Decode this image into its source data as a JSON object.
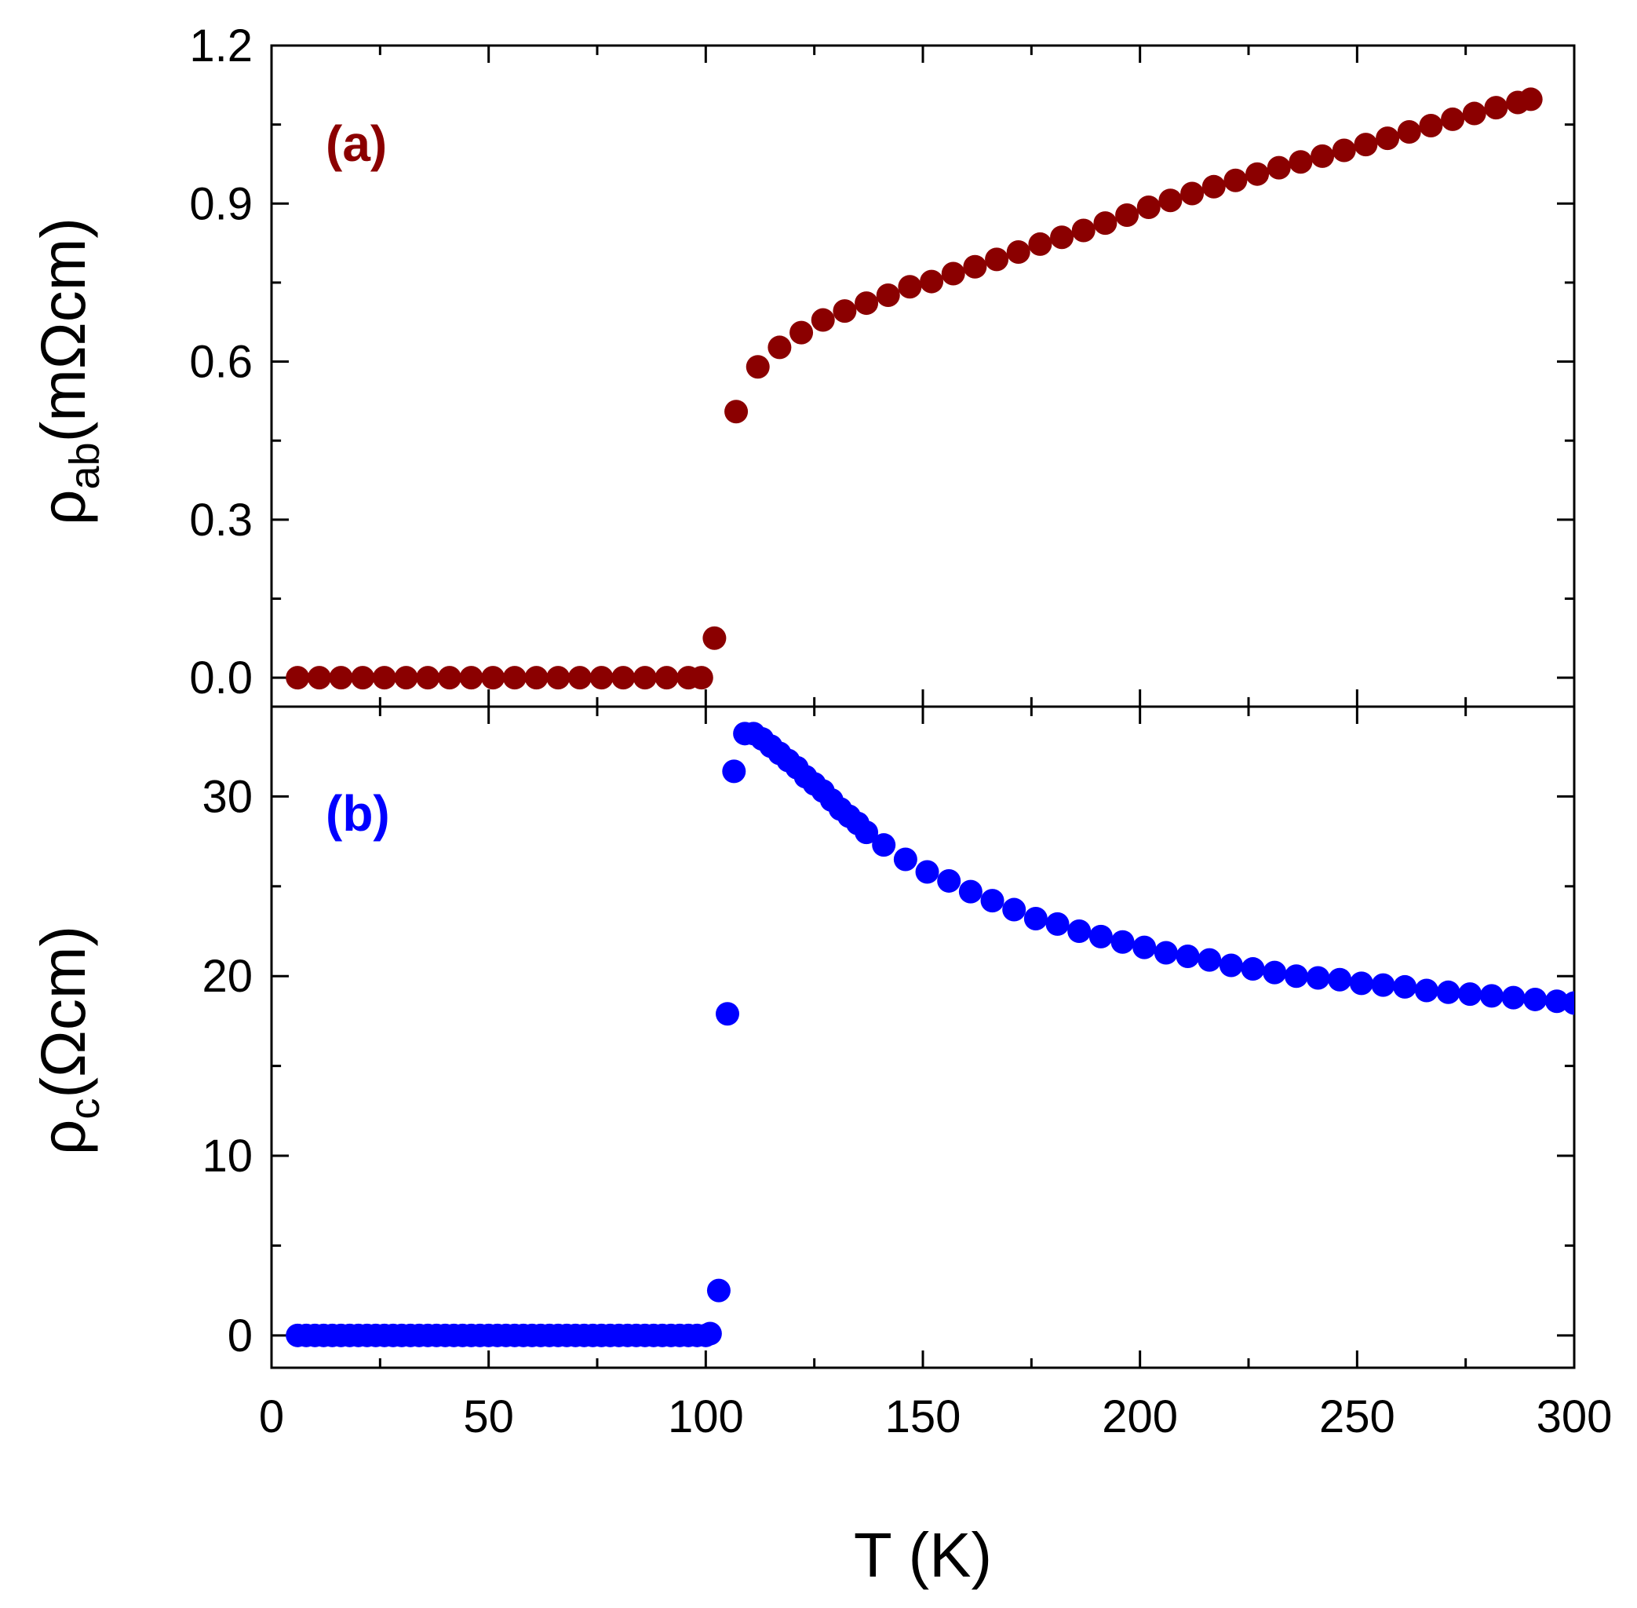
{
  "colors": {
    "series_a": "#8b0000",
    "series_b": "#0000ff",
    "axes": "#000000",
    "background": "#ffffff"
  },
  "chart_data": [
    {
      "panel": "a",
      "type": "scatter",
      "panel_tag": "(a)",
      "xlabel": "T (K)",
      "ylabel": {
        "symbol": "ρ",
        "subscript": "ab",
        "unit": "(mΩcm)"
      },
      "xlim": [
        0,
        300
      ],
      "ylim": [
        -0.055,
        1.2
      ],
      "x_ticks": [
        0,
        50,
        100,
        150,
        200,
        250,
        300
      ],
      "y_ticks": [
        0.0,
        0.3,
        0.6,
        0.9,
        1.2
      ],
      "y_tick_labels": [
        "0.0",
        "0.3",
        "0.6",
        "0.9",
        "1.2"
      ],
      "grid": false,
      "series": [
        {
          "color": "#8b0000",
          "points": [
            [
              6,
              0.0
            ],
            [
              11,
              0.0
            ],
            [
              16,
              0.0
            ],
            [
              21,
              0.0
            ],
            [
              26,
              0.0
            ],
            [
              31,
              0.0
            ],
            [
              36,
              0.0
            ],
            [
              41,
              0.0
            ],
            [
              46,
              0.0
            ],
            [
              51,
              0.0
            ],
            [
              56,
              0.0
            ],
            [
              61,
              0.0
            ],
            [
              66,
              0.0
            ],
            [
              71,
              0.0
            ],
            [
              76,
              0.0
            ],
            [
              81,
              0.0
            ],
            [
              86,
              0.0
            ],
            [
              91,
              0.0
            ],
            [
              96,
              0.0
            ],
            [
              99,
              0.0
            ],
            [
              102,
              0.075
            ],
            [
              107,
              0.505
            ],
            [
              112,
              0.59
            ],
            [
              117,
              0.627
            ],
            [
              122,
              0.655
            ],
            [
              127,
              0.679
            ],
            [
              132,
              0.696
            ],
            [
              137,
              0.711
            ],
            [
              142,
              0.726
            ],
            [
              147,
              0.742
            ],
            [
              152,
              0.752
            ],
            [
              157,
              0.767
            ],
            [
              162,
              0.78
            ],
            [
              167,
              0.794
            ],
            [
              172,
              0.808
            ],
            [
              177,
              0.823
            ],
            [
              182,
              0.836
            ],
            [
              187,
              0.849
            ],
            [
              192,
              0.863
            ],
            [
              197,
              0.878
            ],
            [
              202,
              0.893
            ],
            [
              207,
              0.906
            ],
            [
              212,
              0.919
            ],
            [
              217,
              0.932
            ],
            [
              222,
              0.944
            ],
            [
              227,
              0.956
            ],
            [
              232,
              0.968
            ],
            [
              237,
              0.979
            ],
            [
              242,
              0.99
            ],
            [
              247,
              1.001
            ],
            [
              252,
              1.012
            ],
            [
              257,
              1.024
            ],
            [
              262,
              1.036
            ],
            [
              267,
              1.048
            ],
            [
              272,
              1.06
            ],
            [
              277,
              1.071
            ],
            [
              282,
              1.082
            ],
            [
              287,
              1.092
            ],
            [
              290,
              1.098
            ]
          ]
        }
      ]
    },
    {
      "panel": "b",
      "type": "scatter",
      "panel_tag": "(b)",
      "xlabel": "T (K)",
      "ylabel": {
        "symbol": "ρ",
        "subscript": "c",
        "unit": "(Ωcm)"
      },
      "xlim": [
        0,
        300
      ],
      "ylim": [
        -1.8,
        35
      ],
      "x_ticks": [
        0,
        50,
        100,
        150,
        200,
        250,
        300
      ],
      "x_tick_labels": [
        "0",
        "50",
        "100",
        "150",
        "200",
        "250",
        "300"
      ],
      "y_ticks": [
        0,
        10,
        20,
        30
      ],
      "y_tick_labels": [
        "0",
        "10",
        "20",
        "30"
      ],
      "grid": false,
      "series": [
        {
          "color": "#0000ff",
          "points": [
            [
              6,
              0.0
            ],
            [
              8,
              0.0
            ],
            [
              10,
              0.0
            ],
            [
              12,
              0.0
            ],
            [
              14,
              0.0
            ],
            [
              16,
              0.0
            ],
            [
              18,
              0.0
            ],
            [
              20,
              0.0
            ],
            [
              22,
              0.0
            ],
            [
              24,
              0.0
            ],
            [
              26,
              0.0
            ],
            [
              28,
              0.0
            ],
            [
              30,
              0.0
            ],
            [
              32,
              0.0
            ],
            [
              34,
              0.0
            ],
            [
              36,
              0.0
            ],
            [
              38,
              0.0
            ],
            [
              40,
              0.0
            ],
            [
              42,
              0.0
            ],
            [
              44,
              0.0
            ],
            [
              46,
              0.0
            ],
            [
              48,
              0.0
            ],
            [
              50,
              0.0
            ],
            [
              52,
              0.0
            ],
            [
              54,
              0.0
            ],
            [
              56,
              0.0
            ],
            [
              58,
              0.0
            ],
            [
              60,
              0.0
            ],
            [
              62,
              0.0
            ],
            [
              64,
              0.0
            ],
            [
              66,
              0.0
            ],
            [
              68,
              0.0
            ],
            [
              70,
              0.0
            ],
            [
              72,
              0.0
            ],
            [
              74,
              0.0
            ],
            [
              76,
              0.0
            ],
            [
              78,
              0.0
            ],
            [
              80,
              0.0
            ],
            [
              82,
              0.0
            ],
            [
              84,
              0.0
            ],
            [
              86,
              0.0
            ],
            [
              88,
              0.0
            ],
            [
              90,
              0.0
            ],
            [
              92,
              0.0
            ],
            [
              94,
              0.0
            ],
            [
              96,
              0.0
            ],
            [
              98,
              0.0
            ],
            [
              100,
              0.0
            ],
            [
              101,
              0.1
            ],
            [
              103,
              2.5
            ],
            [
              105,
              17.9
            ],
            [
              106.5,
              31.4
            ],
            [
              109,
              33.5
            ],
            [
              111,
              33.5
            ],
            [
              113,
              33.2
            ],
            [
              115,
              32.8
            ],
            [
              117,
              32.4
            ],
            [
              119,
              32.0
            ],
            [
              121,
              31.6
            ],
            [
              123,
              31.1
            ],
            [
              125,
              30.7
            ],
            [
              127,
              30.3
            ],
            [
              129,
              29.8
            ],
            [
              131,
              29.3
            ],
            [
              133,
              28.9
            ],
            [
              135,
              28.5
            ],
            [
              137,
              28.0
            ],
            [
              141,
              27.3
            ],
            [
              146,
              26.5
            ],
            [
              151,
              25.8
            ],
            [
              156,
              25.3
            ],
            [
              161,
              24.7
            ],
            [
              166,
              24.2
            ],
            [
              171,
              23.7
            ],
            [
              176,
              23.2
            ],
            [
              181,
              22.9
            ],
            [
              186,
              22.5
            ],
            [
              191,
              22.2
            ],
            [
              196,
              21.9
            ],
            [
              201,
              21.6
            ],
            [
              206,
              21.3
            ],
            [
              211,
              21.1
            ],
            [
              216,
              20.9
            ],
            [
              221,
              20.6
            ],
            [
              226,
              20.4
            ],
            [
              231,
              20.2
            ],
            [
              236,
              20.0
            ],
            [
              241,
              19.9
            ],
            [
              246,
              19.8
            ],
            [
              251,
              19.6
            ],
            [
              256,
              19.5
            ],
            [
              261,
              19.4
            ],
            [
              266,
              19.2
            ],
            [
              271,
              19.1
            ],
            [
              276,
              19.0
            ],
            [
              281,
              18.9
            ],
            [
              286,
              18.8
            ],
            [
              291,
              18.7
            ],
            [
              296,
              18.6
            ],
            [
              300,
              18.5
            ]
          ]
        }
      ]
    }
  ]
}
